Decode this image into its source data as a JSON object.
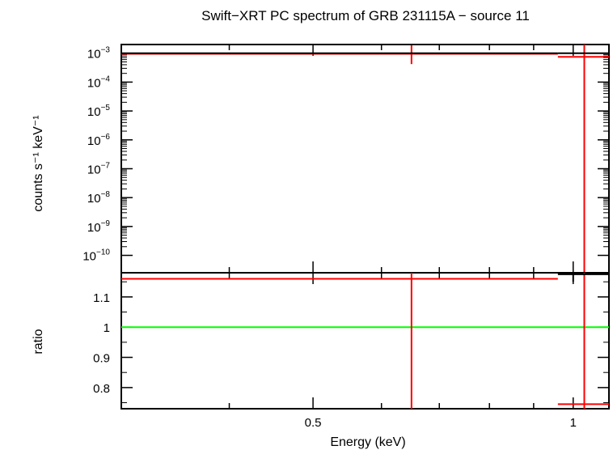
{
  "chart_data": [
    {
      "type": "line",
      "panel": "spectrum",
      "title": "Swift−XRT PC spectrum of GRB 231115A − source 11",
      "ylabel": "counts s⁻¹ keV⁻¹",
      "xlabel": "",
      "x_scale": "log",
      "y_scale": "log",
      "xlim": [
        0.3,
        1.1
      ],
      "ylim": [
        2.5e-11,
        0.002
      ],
      "y_ticks": [
        {
          "value": 0.001,
          "base": "10",
          "exp": "−3"
        },
        {
          "value": 0.0001,
          "base": "10",
          "exp": "−4"
        },
        {
          "value": 1e-05,
          "base": "10",
          "exp": "−5"
        },
        {
          "value": 1e-06,
          "base": "10",
          "exp": "−6"
        },
        {
          "value": 1e-07,
          "base": "10",
          "exp": "−7"
        },
        {
          "value": 1e-08,
          "base": "10",
          "exp": "−8"
        },
        {
          "value": 1e-09,
          "base": "10",
          "exp": "−9"
        },
        {
          "value": 1e-10,
          "base": "10",
          "exp": "−10"
        }
      ],
      "series": [
        {
          "color": "#ff0000",
          "kind": "data",
          "points": [
            {
              "x": 0.65,
              "xlo": 0.3,
              "xhi": 0.96,
              "y": 0.00095,
              "ylo": 0.00042,
              "yhi": 0.0019
            },
            {
              "x": 1.03,
              "xlo": 0.96,
              "xhi": 1.1,
              "y": 0.00075,
              "ylo": 2.5e-11,
              "yhi": 0.002
            }
          ]
        },
        {
          "color": "#000000",
          "kind": "model",
          "points": [
            {
              "xlo": 0.3,
              "xhi": 0.96,
              "y": 0.001
            },
            {
              "xlo": 0.96,
              "xhi": 1.1,
              "y": 0.001
            }
          ]
        }
      ]
    },
    {
      "type": "line",
      "panel": "ratio",
      "title": "",
      "xlabel": "Energy (keV)",
      "ylabel": "ratio",
      "x_scale": "log",
      "y_scale": "linear",
      "xlim": [
        0.3,
        1.1
      ],
      "ylim": [
        0.73,
        1.18
      ],
      "x_ticks": [
        {
          "value": 0.5,
          "label": "0.5"
        },
        {
          "value": 1,
          "label": "1"
        }
      ],
      "y_ticks": [
        {
          "value": 0.8,
          "label": "0.8"
        },
        {
          "value": 0.9,
          "label": "0.9"
        },
        {
          "value": 1,
          "label": "1"
        },
        {
          "value": 1.1,
          "label": "1.1"
        }
      ],
      "reference_line": {
        "y": 1,
        "color": "#00ff00"
      },
      "series": [
        {
          "color": "#ff0000",
          "kind": "data",
          "points": [
            {
              "x": 0.65,
              "xlo": 0.3,
              "xhi": 0.96,
              "y": 1.16,
              "ylo": 0.73,
              "yhi": 1.18
            },
            {
              "x": 1.03,
              "xlo": 0.96,
              "xhi": 1.1,
              "y": 0.745,
              "ylo": 0.73,
              "yhi": 1.18
            }
          ]
        },
        {
          "color": "#000000",
          "kind": "data",
          "points": [
            {
              "x": 1.0,
              "xlo": 0.96,
              "xhi": 1.1,
              "y": 1.175,
              "ylo": 1.15,
              "yhi": 1.18
            }
          ]
        }
      ]
    }
  ]
}
